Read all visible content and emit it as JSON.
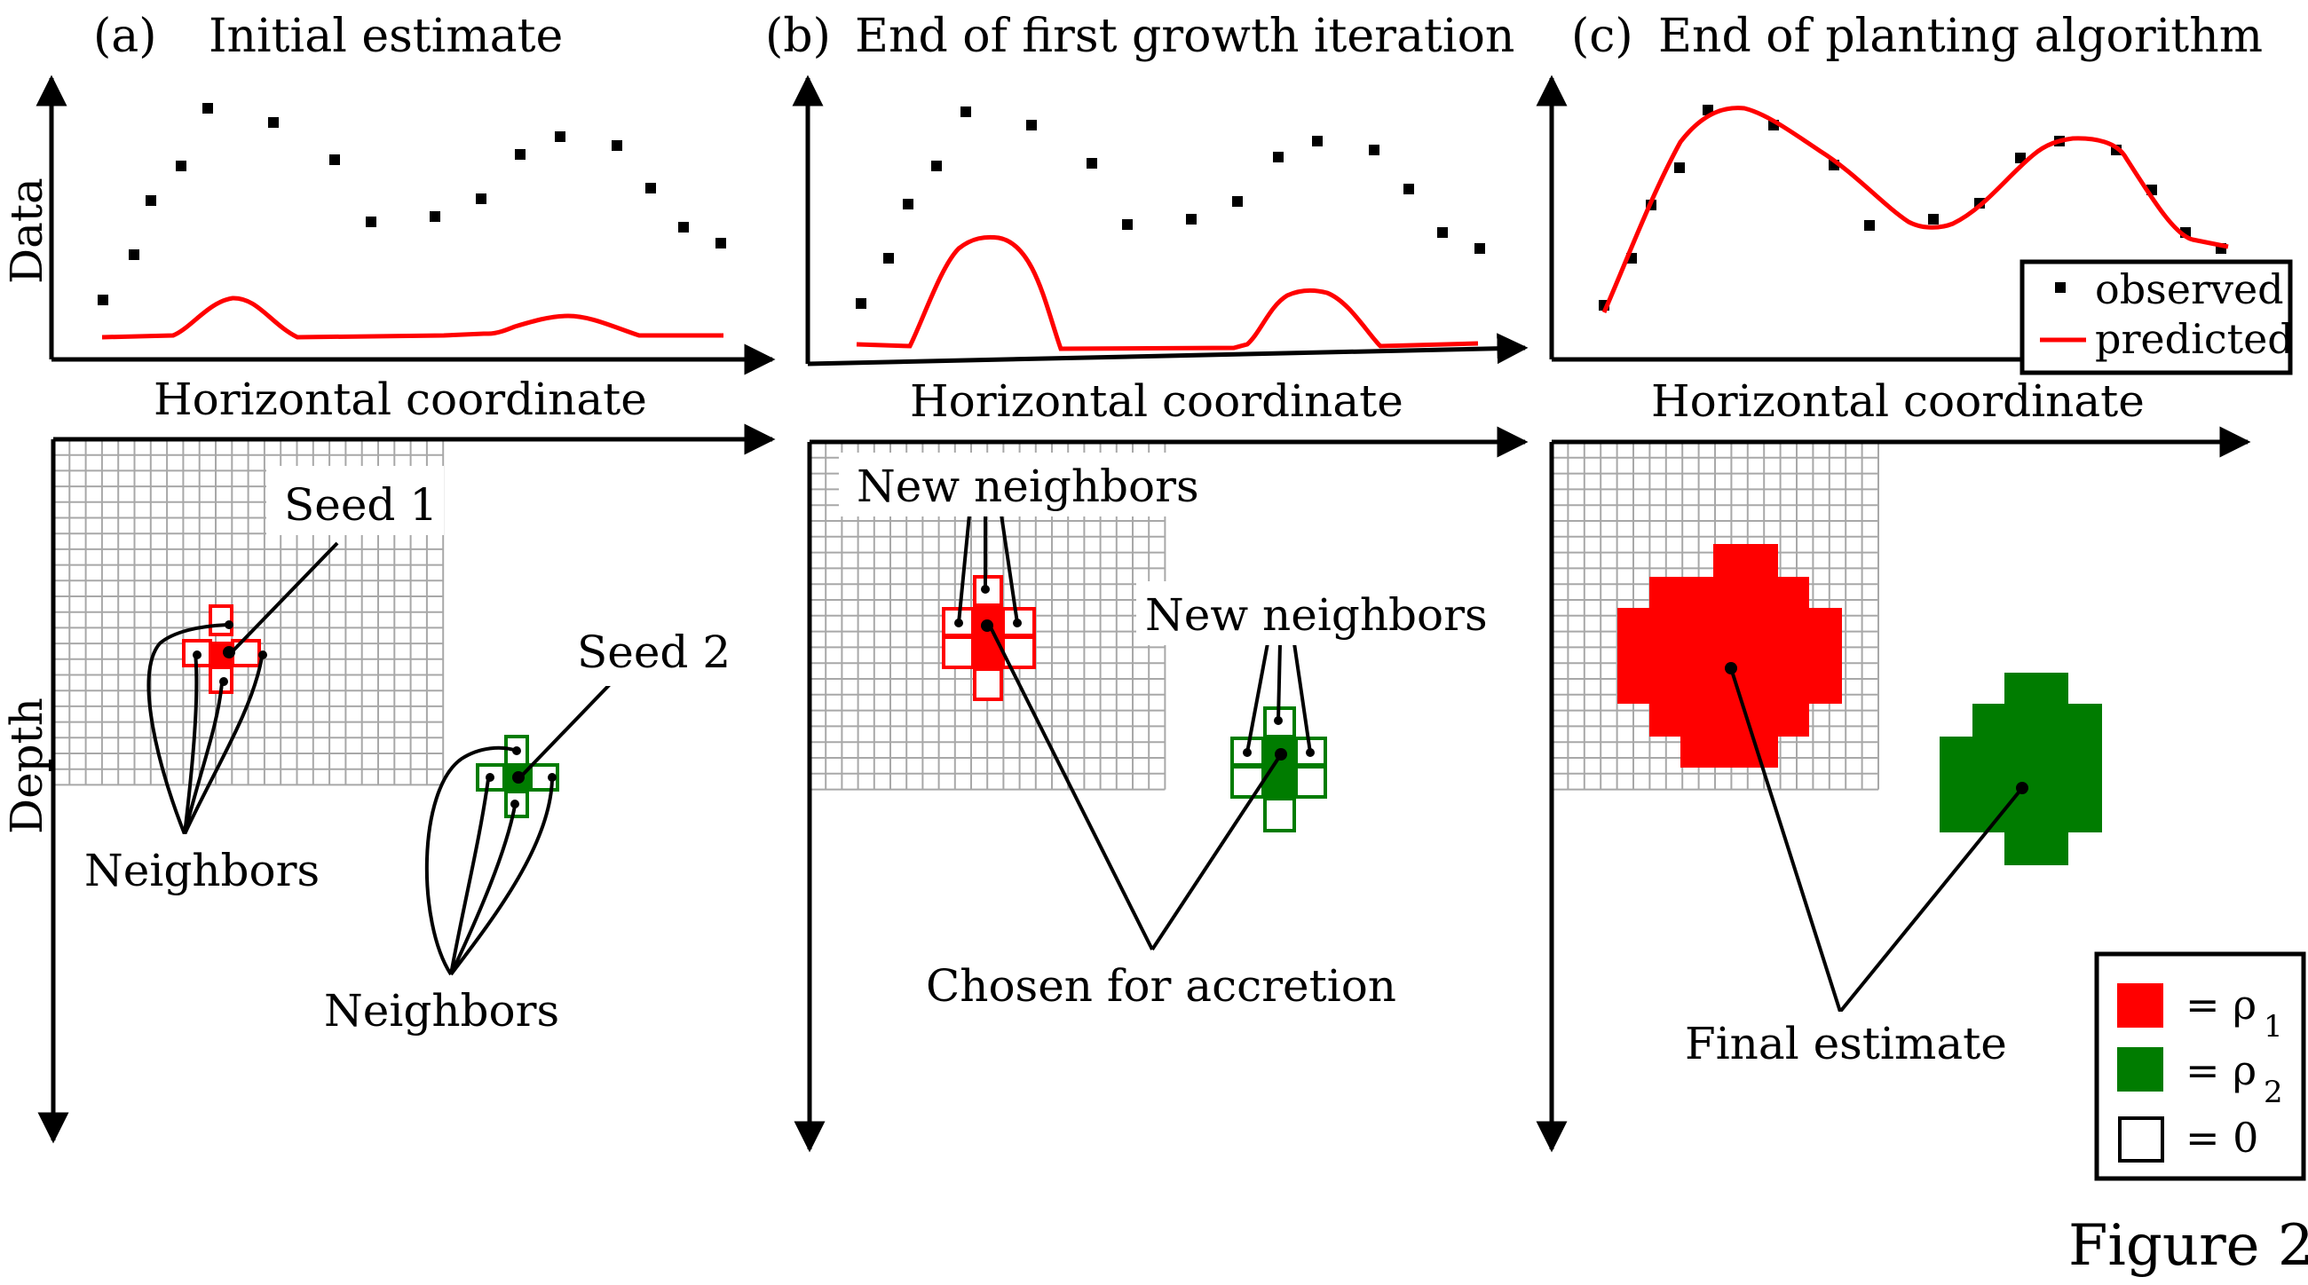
{
  "panels": [
    {
      "letter": "(a)",
      "title": "Initial estimate"
    },
    {
      "letter": "(b)",
      "title": "End of first growth iteration"
    },
    {
      "letter": "(c)",
      "title": "End of planting algorithm"
    }
  ],
  "axes": {
    "y_top": "Data",
    "x_top": "Horizontal coordinate",
    "y_bottom": "Depth"
  },
  "annotations": {
    "seed1": "Seed 1",
    "seed2": "Seed 2",
    "neighbors": "Neighbors",
    "new_neighbors": "New neighbors",
    "chosen": "Chosen for accretion",
    "final": "Final estimate"
  },
  "data_legend": {
    "observed": "observed",
    "predicted": "predicted"
  },
  "density_legend": {
    "rho1_symbol": "= ρ",
    "rho1_sub": "1",
    "rho2_symbol": "= ρ",
    "rho2_sub": "2",
    "zero": "= 0"
  },
  "caption": "Figure 2",
  "colors": {
    "rho1": "#ff0000",
    "rho2": "#007c00",
    "grid": "#a8a8a8",
    "predicted": "#ff0000"
  }
}
